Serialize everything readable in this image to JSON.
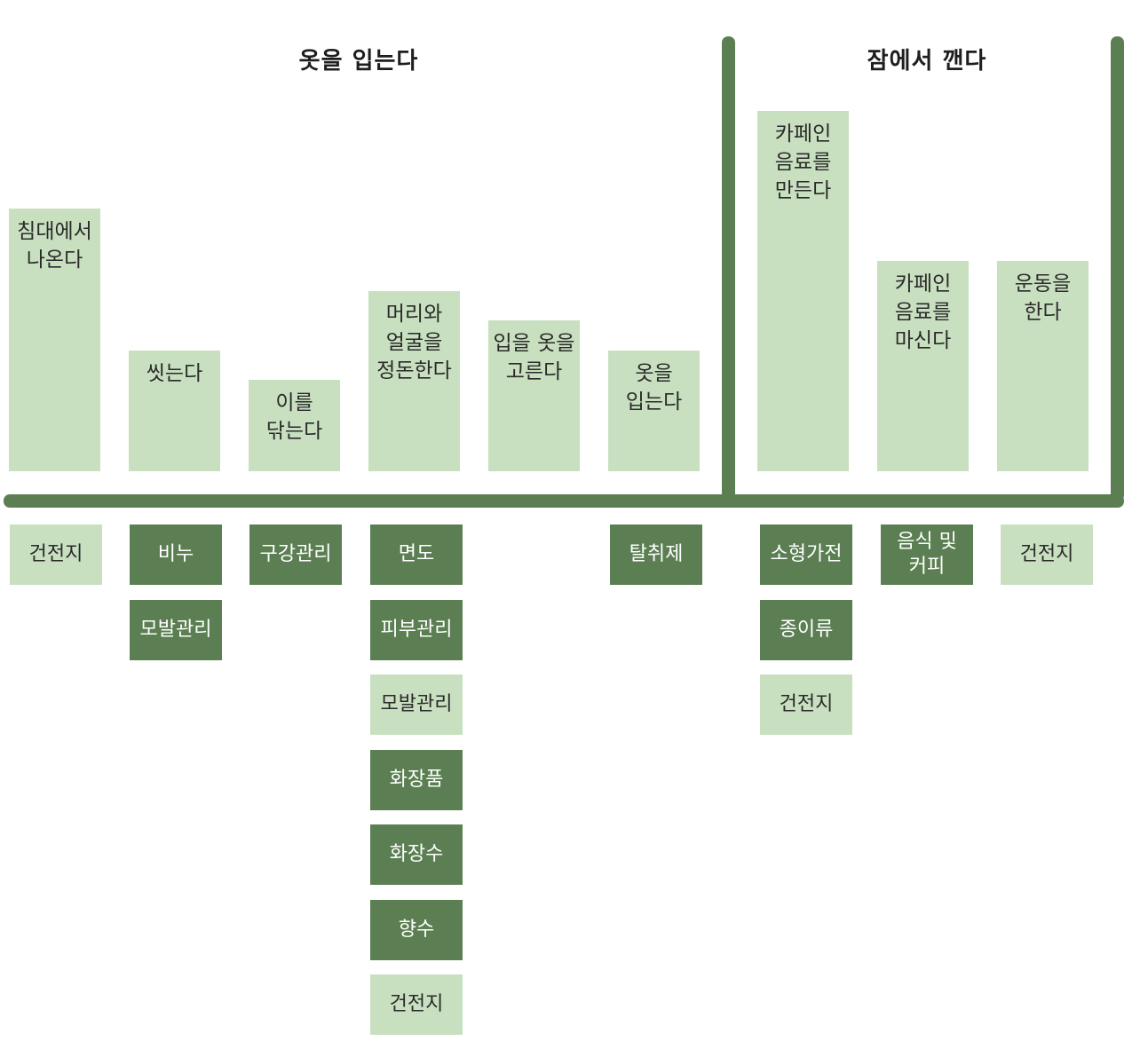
{
  "groups": [
    {
      "title": "옷을 입는다"
    },
    {
      "title": "잠에서 깬다"
    }
  ],
  "steps": [
    {
      "label": "침대에서\n나온다"
    },
    {
      "label": "씻는다"
    },
    {
      "label": "이를\n닦는다"
    },
    {
      "label": "머리와\n얼굴을\n정돈한다"
    },
    {
      "label": "입을 옷을\n고른다"
    },
    {
      "label": "옷을\n입는다"
    },
    {
      "label": "카페인\n음료를\n만든다"
    },
    {
      "label": "카페인\n음료를\n마신다"
    },
    {
      "label": "운동을\n한다"
    }
  ],
  "tags": [
    {
      "label": "건전지",
      "tone": "light"
    },
    {
      "label": "비누",
      "tone": "dark"
    },
    {
      "label": "모발관리",
      "tone": "dark"
    },
    {
      "label": "구강관리",
      "tone": "dark"
    },
    {
      "label": "면도",
      "tone": "dark"
    },
    {
      "label": "피부관리",
      "tone": "dark"
    },
    {
      "label": "모발관리",
      "tone": "light"
    },
    {
      "label": "화장품",
      "tone": "dark"
    },
    {
      "label": "화장수",
      "tone": "dark"
    },
    {
      "label": "향수",
      "tone": "dark"
    },
    {
      "label": "건전지",
      "tone": "light"
    },
    {
      "label": "탈취제",
      "tone": "dark"
    },
    {
      "label": "소형가전",
      "tone": "dark"
    },
    {
      "label": "종이류",
      "tone": "dark"
    },
    {
      "label": "건전지",
      "tone": "light"
    },
    {
      "label": "음식 및\n커피",
      "tone": "dark"
    },
    {
      "label": "건전지",
      "tone": "light"
    }
  ],
  "colors": {
    "dark": "#5b7f52",
    "light": "#c8e0c0"
  }
}
